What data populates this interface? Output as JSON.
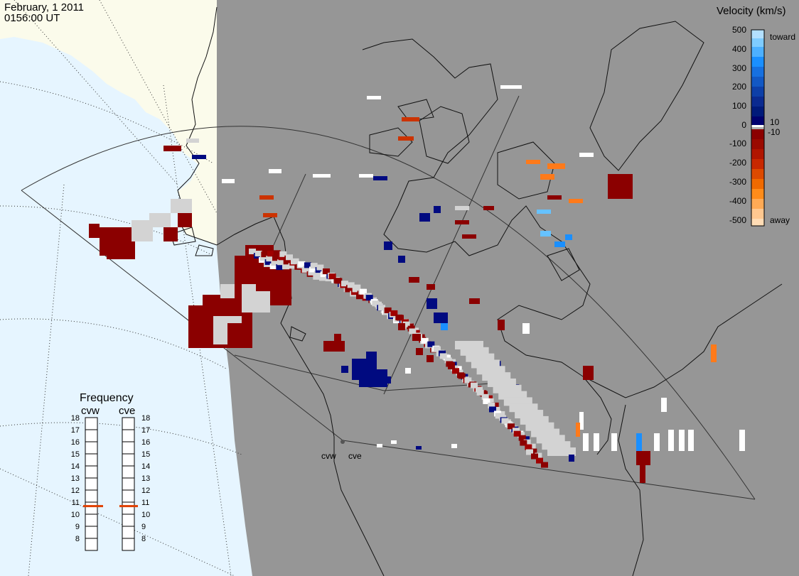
{
  "header": {
    "date": "February, 1 2011",
    "time": "0156:00 UT"
  },
  "legend": {
    "title": "Velocity (km/s)",
    "ticks": [
      "500",
      "400",
      "300",
      "200",
      "100",
      "0",
      "-100",
      "-200",
      "-300",
      "-400",
      "-500"
    ],
    "label_toward": "toward",
    "label_away": "away",
    "label_plus10": "10",
    "label_minus10": "-10",
    "colors": [
      "#b3e0ff",
      "#66bfff",
      "#1a8fff",
      "#1060d0",
      "#0a2f9a",
      "#00006e",
      "#8b0000",
      "#a00000",
      "#c81e00",
      "#e05000",
      "#ff8000",
      "#ffb060",
      "#ffd9a8"
    ]
  },
  "frequency": {
    "title": "Frequency",
    "radars": [
      "cvw",
      "cve"
    ],
    "ticks": [
      "18",
      "17",
      "16",
      "15",
      "14",
      "13",
      "12",
      "11",
      "10",
      "9",
      "8"
    ],
    "value_mhz": 10.7
  },
  "radar_labels": [
    "cvw",
    "cve"
  ],
  "colors": {
    "map_gray": "#969696",
    "land_cream": "#fbfbeb",
    "ocean_blue": "#e6f5ff",
    "ground_scatter": "#d3d3d3",
    "no_velocity": "#ffffff"
  }
}
